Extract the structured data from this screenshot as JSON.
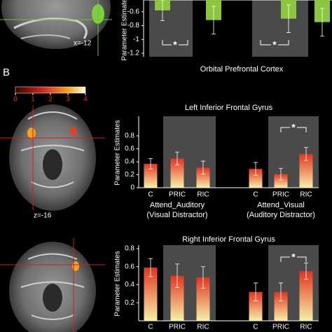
{
  "panel_label": "B",
  "slice_labels": [
    "x=-12",
    "z=-16"
  ],
  "colorbar_ticks": [
    0,
    1,
    2,
    3,
    4
  ],
  "chart_data": [
    {
      "type": "bar",
      "ylabel": "Parameter Estimates",
      "xlabel": "Orbital Prefrontal Cortex",
      "categories": [
        null,
        null,
        null,
        null
      ],
      "series": [
        {
          "color": "#8cc63e",
          "values": [
            -0.58,
            -0.72,
            -0.7,
            -0.75
          ],
          "errors": [
            0.15,
            0.2,
            0.2,
            0.2
          ]
        }
      ],
      "ylim": [
        -1.25,
        -0.43
      ],
      "yticks": [
        -0.6,
        -0.8,
        -1,
        -1.2
      ],
      "annotations": [
        "*",
        "*"
      ]
    },
    {
      "type": "bar",
      "title": "Left Inferior Frontal Gyrus",
      "ylabel": "Parameter Estimates",
      "categories": [
        "C",
        "PRIC",
        "RIC",
        "C",
        "PRIC",
        "RIC"
      ],
      "group_labels": [
        [
          "Attend_Auditory",
          "(Visual Distractor)"
        ],
        [
          "Attend_Visual",
          "(Auditory Distractor)"
        ]
      ],
      "series": [
        {
          "gradient": [
            "#e3341f",
            "#f6f0a8"
          ],
          "values": [
            0.37,
            0.45,
            0.31,
            0.29,
            0.21,
            0.52
          ],
          "errors": [
            0.08,
            0.1,
            0.1,
            0.1,
            0.09,
            0.1
          ]
        }
      ],
      "ylim": [
        0,
        0.8
      ],
      "yticks": [
        0,
        0.2,
        0.4,
        0.6,
        0.8
      ],
      "annotations": [
        "*"
      ]
    },
    {
      "type": "bar",
      "title": "Right Inferior Frontal Gyrus",
      "ylabel": "Parameter Estimates",
      "categories": [
        "C",
        "PRIC",
        "RIC",
        "C",
        "PRIC",
        "RIC"
      ],
      "series": [
        {
          "gradient": [
            "#e3341f",
            "#f6f0a8"
          ],
          "values": [
            0.59,
            0.5,
            0.48,
            0.32,
            0.32,
            0.55
          ],
          "errors": [
            0.1,
            0.13,
            0.12,
            0.1,
            0.1,
            0.09
          ]
        }
      ],
      "ylim": [
        0,
        0.8
      ],
      "yticks": [
        0.2,
        0.4,
        0.6,
        0.8
      ],
      "annotations": [
        "*"
      ]
    }
  ]
}
